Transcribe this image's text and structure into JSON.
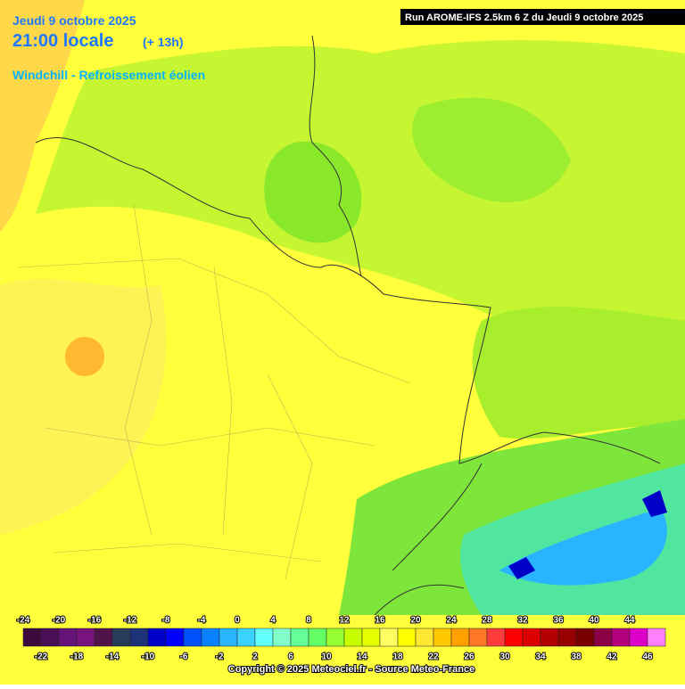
{
  "header": {
    "date": "Jeudi 9 octobre 2025",
    "time": "21:00 locale",
    "offset": "(+ 13h)",
    "parameter": "Windchill - Refroissement éolien",
    "run": "Run AROME-IFS 2.5km 6 Z du Jeudi 9 octobre 2025"
  },
  "legend": {
    "labels": [
      -24,
      -22,
      -20,
      -18,
      -16,
      -14,
      -12,
      -10,
      -8,
      -6,
      -4,
      -2,
      0,
      2,
      4,
      6,
      8,
      10,
      12,
      14,
      16,
      18,
      20,
      22,
      24,
      26,
      28,
      30,
      32,
      34,
      36,
      38,
      40,
      42,
      44,
      46
    ],
    "colors": [
      "#3c0a3c",
      "#4b0f5a",
      "#641478",
      "#78147d",
      "#50144b",
      "#283c5a",
      "#1e3278",
      "#0000c8",
      "#0000ff",
      "#0050ff",
      "#0a82ff",
      "#28b4ff",
      "#3cd2ff",
      "#64ffff",
      "#82ffc8",
      "#64ff96",
      "#64ff64",
      "#96ff32",
      "#c8ff00",
      "#e6ff00",
      "#ffff64",
      "#ffff00",
      "#ffe632",
      "#ffc800",
      "#ffa000",
      "#ff7828",
      "#ff3c3c",
      "#ff0000",
      "#dc0000",
      "#b40000",
      "#960000",
      "#780000",
      "#8c0046",
      "#b4007d",
      "#dc00c8",
      "#ff80ff"
    ]
  },
  "footer": {
    "copyright": "Copyright © 2025 Meteociel.fr - Source Meteo-France"
  }
}
